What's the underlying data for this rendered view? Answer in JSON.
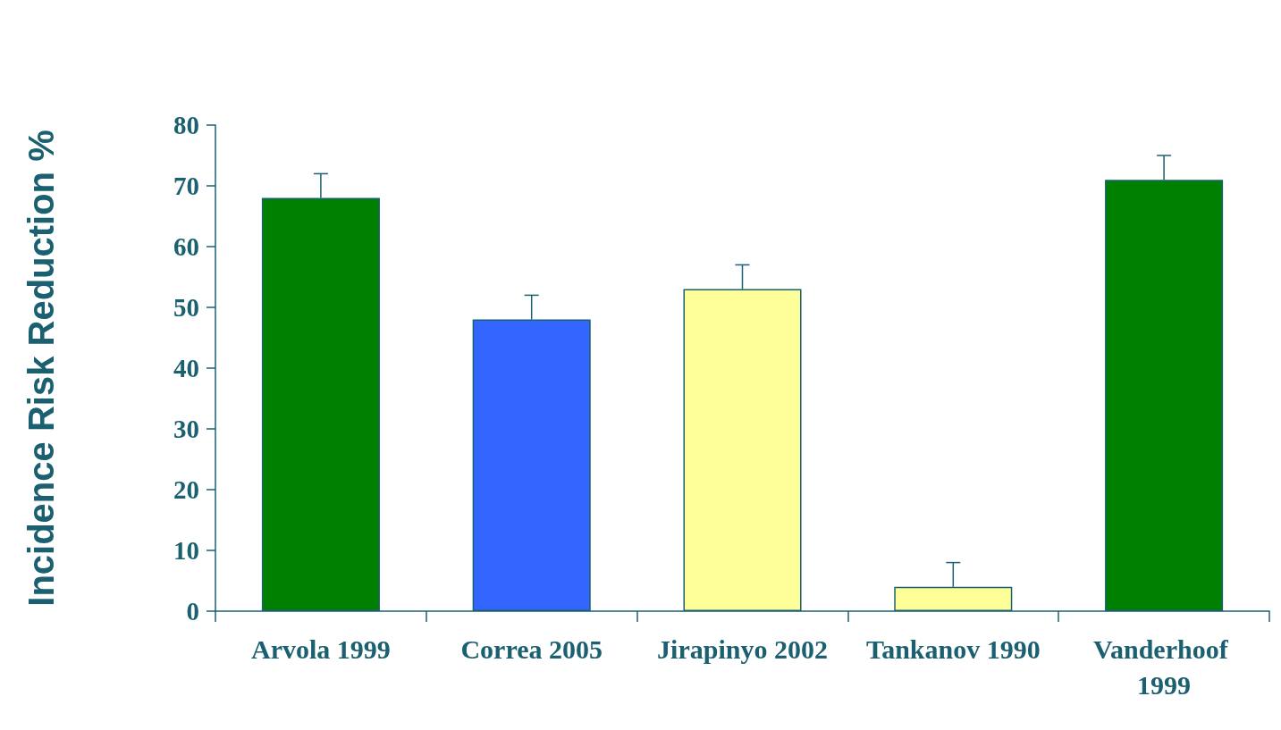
{
  "chart_data": {
    "type": "bar",
    "ylabel": "Incidence Risk Reduction %",
    "categories": [
      "Arvola 1999",
      "Correa 2005",
      "Jirapinyo 2002",
      "Tankanov 1990",
      "Vanderhoof 1999"
    ],
    "values": [
      68,
      48,
      53,
      4,
      71
    ],
    "colors": [
      "#008000",
      "#3366ff",
      "#ffff99",
      "#ffff99",
      "#008000"
    ],
    "errors": [
      [
        68,
        72
      ],
      [
        48,
        52
      ],
      [
        53,
        57
      ],
      [
        4,
        8
      ],
      [
        71,
        75
      ]
    ],
    "ylim": [
      0,
      80
    ],
    "yticks": [
      0,
      10,
      20,
      30,
      40,
      50,
      60,
      70,
      80
    ],
    "grid": false
  }
}
